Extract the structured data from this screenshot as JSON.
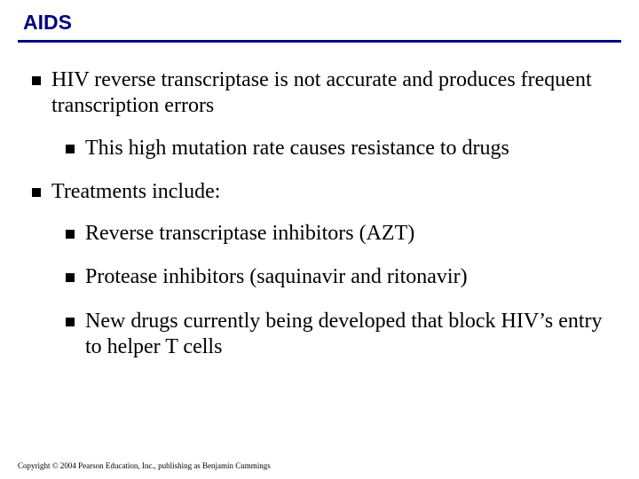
{
  "title": "AIDS",
  "title_color": "#000080",
  "rule_color": "#000080",
  "background_color": "#ffffff",
  "text_color": "#000000",
  "font_body": "Times New Roman",
  "font_title": "Arial",
  "title_fontsize": 23,
  "body_fontsize": 24,
  "bullets": {
    "b1": "HIV reverse transcriptase is not accurate and produces frequent transcription errors",
    "b1_1": "This high mutation rate causes resistance to drugs",
    "b2": "Treatments include:",
    "b2_1": "Reverse transcriptase inhibitors (AZT)",
    "b2_2": "Protease inhibitors (saquinavir and ritonavir)",
    "b2_3": "New drugs currently being developed that block HIV’s entry to helper T cells"
  },
  "copyright": "Copyright © 2004 Pearson Education, Inc., publishing as Benjamin Cummings"
}
